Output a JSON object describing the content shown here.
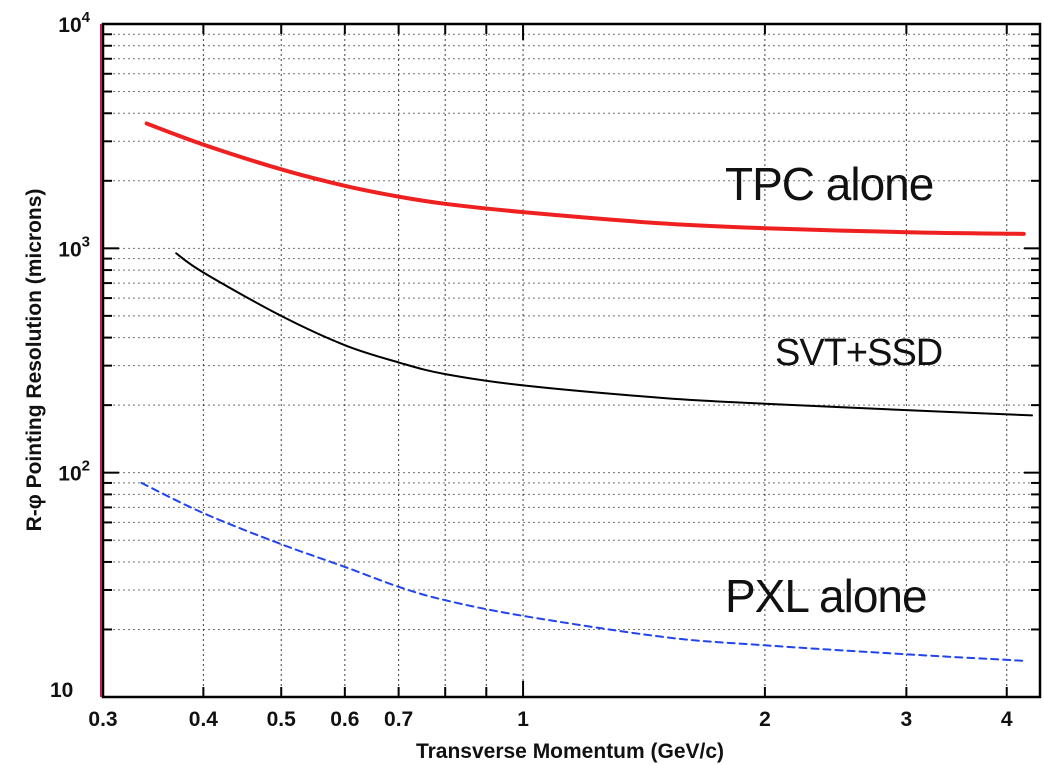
{
  "chart_data": {
    "type": "line",
    "title": "",
    "xlabel": "Transverse Momentum (GeV/c)",
    "ylabel": "R-φ Pointing Resolution (microns)",
    "xscale": "log",
    "yscale": "log",
    "xlim": [
      0.3,
      4.4
    ],
    "ylim": [
      10,
      10000
    ],
    "grid": true,
    "x_tick_labels": [
      {
        "value": 0.3,
        "label": "0.3"
      },
      {
        "value": 0.4,
        "label": "0.4"
      },
      {
        "value": 0.5,
        "label": "0.5"
      },
      {
        "value": 0.6,
        "label": "0.6"
      },
      {
        "value": 0.7,
        "label": "0.7"
      },
      {
        "value": 1,
        "label": "1"
      },
      {
        "value": 2,
        "label": "2"
      },
      {
        "value": 3,
        "label": "3"
      },
      {
        "value": 4,
        "label": "4"
      }
    ],
    "y_tick_labels": [
      {
        "value": 10,
        "label": "10"
      },
      {
        "value": 100,
        "base": "10",
        "exp": "2"
      },
      {
        "value": 1000,
        "base": "10",
        "exp": "3"
      },
      {
        "value": 10000,
        "base": "10",
        "exp": "4"
      }
    ],
    "series": [
      {
        "name": "TPC alone",
        "color": "#ee2020",
        "style": "solid",
        "x": [
          0.34,
          0.4,
          0.5,
          0.6,
          0.7,
          0.8,
          1.0,
          1.5,
          2.0,
          3.0,
          4.2
        ],
        "y": [
          3600,
          2900,
          2250,
          1900,
          1700,
          1580,
          1450,
          1290,
          1230,
          1180,
          1160
        ]
      },
      {
        "name": "SVT+SSD",
        "color": "#000000",
        "style": "solid",
        "x": [
          0.37,
          0.4,
          0.5,
          0.6,
          0.7,
          0.8,
          1.0,
          1.5,
          2.0,
          3.0,
          4.3
        ],
        "y": [
          950,
          780,
          500,
          370,
          310,
          275,
          245,
          215,
          203,
          190,
          180
        ]
      },
      {
        "name": "PXL alone",
        "color": "#2244ee",
        "style": "dashed",
        "x": [
          0.335,
          0.4,
          0.5,
          0.6,
          0.7,
          0.8,
          1.0,
          1.5,
          2.0,
          3.0,
          4.2
        ],
        "y": [
          90,
          66,
          48,
          38,
          31,
          27,
          23,
          18.5,
          17,
          15.5,
          14.5
        ]
      }
    ]
  }
}
